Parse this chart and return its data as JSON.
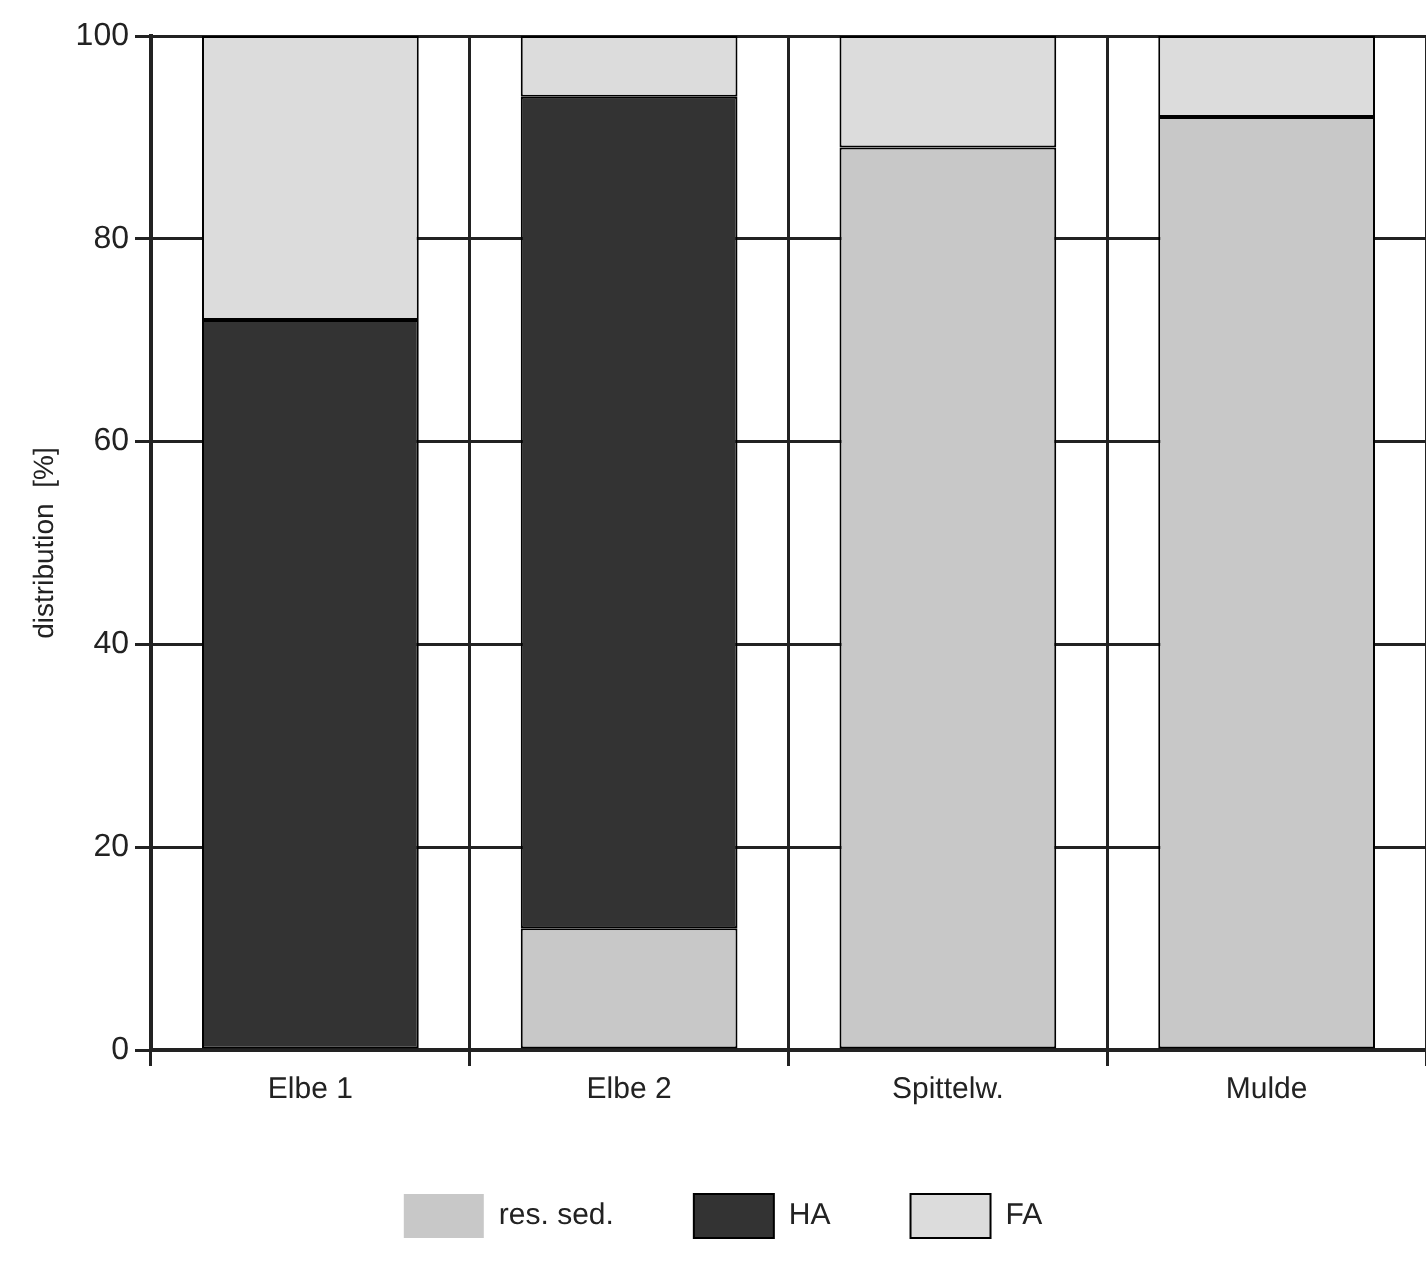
{
  "chart_data": {
    "type": "bar",
    "stacked": true,
    "ylabel": "distribution  [%]",
    "categories": [
      "Elbe 1",
      "Elbe 2",
      "Spittelw.",
      "Mulde"
    ],
    "series": [
      {
        "name": "res. sed.",
        "color": "#c8c8c8",
        "values": [
          0,
          12,
          89,
          92
        ]
      },
      {
        "name": "HA",
        "color": "#333333",
        "values": [
          72,
          82,
          0,
          0
        ]
      },
      {
        "name": "FA",
        "color": "#dcdcdc",
        "values": [
          28,
          6,
          11,
          8
        ]
      }
    ],
    "ylim": [
      0,
      100
    ],
    "yticks": [
      0,
      20,
      40,
      60,
      80,
      100
    ],
    "grid": true,
    "legend": "bottom"
  }
}
